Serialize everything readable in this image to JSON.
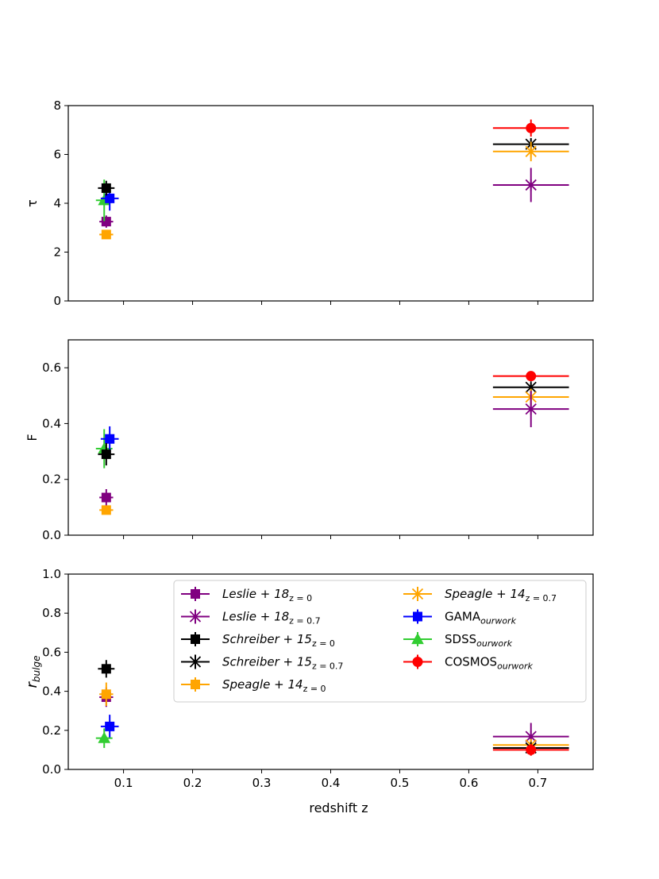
{
  "chart_data": {
    "type": "scatter",
    "xlabel": "redshift z",
    "xlim": [
      0.02,
      0.78
    ],
    "xticks": [
      0.1,
      0.2,
      0.3,
      0.4,
      0.5,
      0.6,
      0.7
    ],
    "xtick_labels": [
      "0.1",
      "0.2",
      "0.3",
      "0.4",
      "0.5",
      "0.6",
      "0.7"
    ],
    "series": [
      {
        "key": "leslie0",
        "name": "Leslie + 18",
        "sub": "z = 0",
        "italic": true,
        "color": "#800080",
        "marker": "square"
      },
      {
        "key": "leslie07",
        "name": "Leslie + 18",
        "sub": "z = 0.7",
        "italic": true,
        "color": "#800080",
        "marker": "x"
      },
      {
        "key": "schreiber0",
        "name": "Schreiber + 15",
        "sub": "z = 0",
        "italic": true,
        "color": "#000000",
        "marker": "square"
      },
      {
        "key": "schreiber07",
        "name": "Schreiber + 15",
        "sub": "z = 0.7",
        "italic": true,
        "color": "#000000",
        "marker": "x"
      },
      {
        "key": "speagle0",
        "name": "Speagle + 14",
        "sub": "z = 0",
        "italic": true,
        "color": "#ffa500",
        "marker": "square"
      },
      {
        "key": "speagle07",
        "name": "Speagle + 14",
        "sub": "z = 0.7",
        "italic": true,
        "color": "#ffa500",
        "marker": "x"
      },
      {
        "key": "gama",
        "name": "GAMA",
        "sub": "ourwork",
        "italic": false,
        "color": "#0000ff",
        "marker": "square"
      },
      {
        "key": "sdss",
        "name": "SDSS",
        "sub": "ourwork",
        "italic": false,
        "color": "#32cd32",
        "marker": "triangle"
      },
      {
        "key": "cosmos",
        "name": "COSMOS",
        "sub": "ourwork",
        "italic": false,
        "color": "#ff0000",
        "marker": "circle"
      }
    ],
    "panels": [
      {
        "id": "tau",
        "ylabel": "τ",
        "ylim": [
          0,
          8
        ],
        "yticks": [
          0,
          2,
          4,
          6,
          8
        ],
        "ytick_labels": [
          "0",
          "2",
          "4",
          "6",
          "8"
        ],
        "points": [
          {
            "series": "leslie0",
            "x": 0.075,
            "y": 3.25,
            "xerr": 0.01,
            "yerr": 0.25
          },
          {
            "series": "speagle0",
            "x": 0.075,
            "y": 2.72,
            "xerr": 0.01,
            "yerr": 0.15
          },
          {
            "series": "sdss",
            "x": 0.072,
            "y": 4.12,
            "xerr": 0.012,
            "yerr": 0.85
          },
          {
            "series": "gama",
            "x": 0.08,
            "y": 4.2,
            "xerr": 0.013,
            "yerr": 0.5
          },
          {
            "series": "schreiber0",
            "x": 0.075,
            "y": 4.62,
            "xerr": 0.012,
            "yerr": 0.3
          },
          {
            "series": "cosmos",
            "x": 0.69,
            "y": 7.08,
            "xerr": 0.055,
            "yerr": 0.35
          },
          {
            "series": "schreiber07",
            "x": 0.69,
            "y": 6.42,
            "xerr": 0.055,
            "yerr": 0.25
          },
          {
            "series": "speagle07",
            "x": 0.69,
            "y": 6.12,
            "xerr": 0.055,
            "yerr": 0.4
          },
          {
            "series": "leslie07",
            "x": 0.69,
            "y": 4.75,
            "xerr": 0.055,
            "yerr": 0.7
          }
        ]
      },
      {
        "id": "F",
        "ylabel": "F",
        "ylim": [
          0,
          0.7
        ],
        "yticks": [
          0,
          0.2,
          0.4,
          0.6
        ],
        "ytick_labels": [
          "0.0",
          "0.2",
          "0.4",
          "0.6"
        ],
        "points": [
          {
            "series": "leslie0",
            "x": 0.075,
            "y": 0.135,
            "xerr": 0.01,
            "yerr": 0.03
          },
          {
            "series": "speagle0",
            "x": 0.075,
            "y": 0.09,
            "xerr": 0.01,
            "yerr": 0.015
          },
          {
            "series": "sdss",
            "x": 0.072,
            "y": 0.31,
            "xerr": 0.012,
            "yerr": 0.07
          },
          {
            "series": "gama",
            "x": 0.08,
            "y": 0.345,
            "xerr": 0.013,
            "yerr": 0.045
          },
          {
            "series": "schreiber0",
            "x": 0.075,
            "y": 0.29,
            "xerr": 0.012,
            "yerr": 0.04
          },
          {
            "series": "cosmos",
            "x": 0.69,
            "y": 0.57,
            "xerr": 0.055,
            "yerr": 0.015
          },
          {
            "series": "schreiber07",
            "x": 0.69,
            "y": 0.53,
            "xerr": 0.055,
            "yerr": 0.015
          },
          {
            "series": "speagle07",
            "x": 0.69,
            "y": 0.495,
            "xerr": 0.055,
            "yerr": 0.03
          },
          {
            "series": "leslie07",
            "x": 0.69,
            "y": 0.452,
            "xerr": 0.055,
            "yerr": 0.065
          }
        ]
      },
      {
        "id": "rbulge",
        "ylabel": "r",
        "ylabel_sub": "bulge",
        "ylim": [
          0,
          1.0
        ],
        "yticks": [
          0,
          0.2,
          0.4,
          0.6,
          0.8,
          1.0
        ],
        "ytick_labels": [
          "0.0",
          "0.2",
          "0.4",
          "0.6",
          "0.8",
          "1.0"
        ],
        "points": [
          {
            "series": "leslie0",
            "x": 0.075,
            "y": 0.37,
            "xerr": 0.01,
            "yerr": 0.05
          },
          {
            "series": "speagle0",
            "x": 0.075,
            "y": 0.385,
            "xerr": 0.01,
            "yerr": 0.06
          },
          {
            "series": "schreiber0",
            "x": 0.075,
            "y": 0.515,
            "xerr": 0.012,
            "yerr": 0.045
          },
          {
            "series": "gama",
            "x": 0.08,
            "y": 0.22,
            "xerr": 0.013,
            "yerr": 0.06
          },
          {
            "series": "sdss",
            "x": 0.072,
            "y": 0.16,
            "xerr": 0.012,
            "yerr": 0.05
          },
          {
            "series": "leslie07",
            "x": 0.69,
            "y": 0.168,
            "xerr": 0.055,
            "yerr": 0.07
          },
          {
            "series": "speagle07",
            "x": 0.69,
            "y": 0.125,
            "xerr": 0.055,
            "yerr": 0.03
          },
          {
            "series": "schreiber07",
            "x": 0.69,
            "y": 0.11,
            "xerr": 0.055,
            "yerr": 0.02
          },
          {
            "series": "cosmos",
            "x": 0.69,
            "y": 0.1,
            "xerr": 0.055,
            "yerr": 0.03
          }
        ]
      }
    ],
    "legend": {
      "panel": "rbulge",
      "placement": "upper-center",
      "columns": [
        [
          "leslie0",
          "leslie07",
          "schreiber0",
          "schreiber07",
          "speagle0"
        ],
        [
          "speagle07",
          "gama",
          "sdss",
          "cosmos"
        ]
      ]
    }
  }
}
